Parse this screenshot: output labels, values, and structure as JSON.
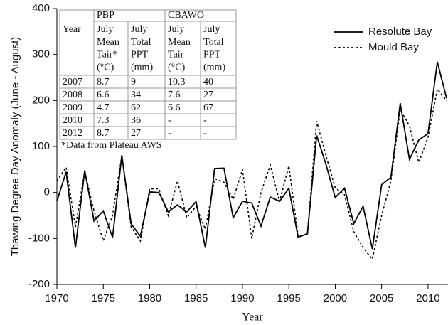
{
  "chart_data": {
    "type": "line",
    "xlabel": "Year",
    "ylabel": "Thawing Degree Day Anomaly (June - August)",
    "x": [
      1970,
      1971,
      1972,
      1973,
      1974,
      1975,
      1976,
      1977,
      1978,
      1979,
      1980,
      1981,
      1982,
      1983,
      1984,
      1985,
      1986,
      1987,
      1988,
      1989,
      1990,
      1991,
      1992,
      1993,
      1994,
      1995,
      1996,
      1997,
      1998,
      1999,
      2000,
      2001,
      2002,
      2003,
      2004,
      2005,
      2006,
      2007,
      2008,
      2009,
      2010,
      2011,
      2012
    ],
    "series": [
      {
        "name": "Resolute Bay",
        "color": "#000000",
        "dash": false,
        "values": [
          -19,
          45,
          -120,
          48,
          -62,
          -40,
          -98,
          81,
          -68,
          -95,
          1,
          0,
          -42,
          -27,
          -42,
          -20,
          -120,
          52,
          53,
          -55,
          -19,
          -23,
          -73,
          -10,
          -19,
          9,
          -97,
          -90,
          124,
          61,
          -11,
          9,
          -68,
          -30,
          -123,
          17,
          33,
          194,
          72,
          114,
          128,
          284,
          205
        ]
      },
      {
        "name": "Mould Bay",
        "color": "#000000",
        "dash": true,
        "values": [
          25,
          55,
          -75,
          45,
          -40,
          -105,
          -50,
          80,
          -75,
          -105,
          8,
          8,
          -50,
          25,
          -55,
          -30,
          -80,
          30,
          22,
          -15,
          50,
          -100,
          0,
          60,
          -20,
          58,
          -95,
          -90,
          155,
          80,
          10,
          -5,
          -85,
          -120,
          -145,
          -50,
          25,
          180,
          145,
          65,
          120,
          225,
          200
        ]
      }
    ],
    "xlim": [
      1970,
      2012
    ],
    "xticks": [
      1970,
      1975,
      1980,
      1985,
      1990,
      1995,
      2000,
      2005,
      2010
    ],
    "ylim": [
      -200,
      400
    ],
    "yticks": [
      -200,
      -100,
      0,
      100,
      200,
      300,
      400
    ],
    "legend": "upper-right"
  },
  "table": {
    "groups": [
      "PBP",
      "CBAWO"
    ],
    "columns": [
      [
        "Year"
      ],
      [
        "July",
        "Mean",
        "Tair*",
        "(°C)"
      ],
      [
        "July",
        "Total",
        "PPT",
        "(mm)"
      ],
      [
        "July",
        "Mean",
        "Tair",
        "(°C)"
      ],
      [
        "July",
        "Total",
        "PPT",
        "(mm)"
      ]
    ],
    "rows": [
      [
        "2007",
        "8.7",
        "9",
        "10.3",
        "40"
      ],
      [
        "2008",
        "6.6",
        "34",
        "7.6",
        "27"
      ],
      [
        "2009",
        "4.7",
        "62",
        "6.6",
        "67"
      ],
      [
        "2010",
        "7.3",
        "36",
        "-",
        "-"
      ],
      [
        "2012",
        "8.7",
        "27",
        "-",
        "-"
      ]
    ],
    "note": "*Data from Plateau AWS"
  }
}
